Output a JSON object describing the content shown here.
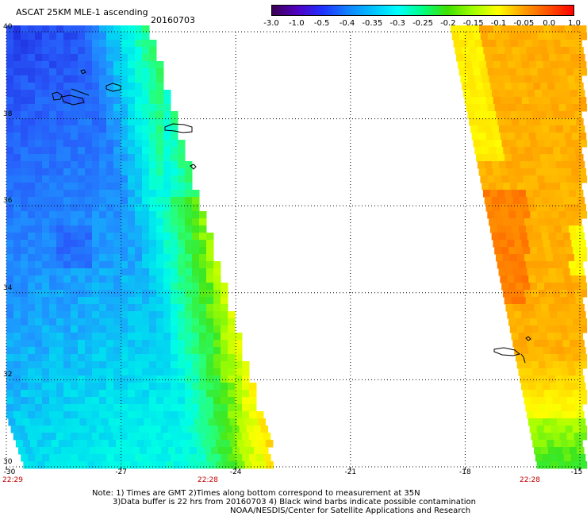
{
  "header": {
    "title": "ASCAT 25KM MLE-1 ascending",
    "date": "20160703"
  },
  "colorbar": {
    "ticks": [
      "-3.0",
      "-1.0",
      "-0.5",
      "-0.4",
      "-0.35",
      "-0.3",
      "-0.25",
      "-0.2",
      "-0.15",
      "-0.1",
      "-0.05",
      "0.0",
      "1.0"
    ],
    "stops": [
      "#3a0050",
      "#5000c0",
      "#2030ff",
      "#1080ff",
      "#00c0ff",
      "#00ffff",
      "#00ff80",
      "#40e000",
      "#a0ff00",
      "#ffff00",
      "#ffa000",
      "#ff5000",
      "#ff0000"
    ]
  },
  "axes": {
    "lat_labels": [
      "40",
      "38",
      "36",
      "34",
      "32",
      "30"
    ],
    "lon_labels": [
      "-30",
      "-27",
      "-24",
      "-21",
      "-18",
      "-15"
    ]
  },
  "time_labels": [
    "22:29",
    "22:28",
    "22:28"
  ],
  "notes": [
    "Note: 1) Times are GMT 2)Times along bottom correspond to measurement at 35N",
    "3)Data buffer is 22 hrs from 20160703 4) Black wind barbs indicate possible contamination",
    "NOAA/NESDIS/Center for Satellite Applications and Research"
  ],
  "colors": {
    "time_label": "#c00000",
    "grid": "#000000"
  }
}
